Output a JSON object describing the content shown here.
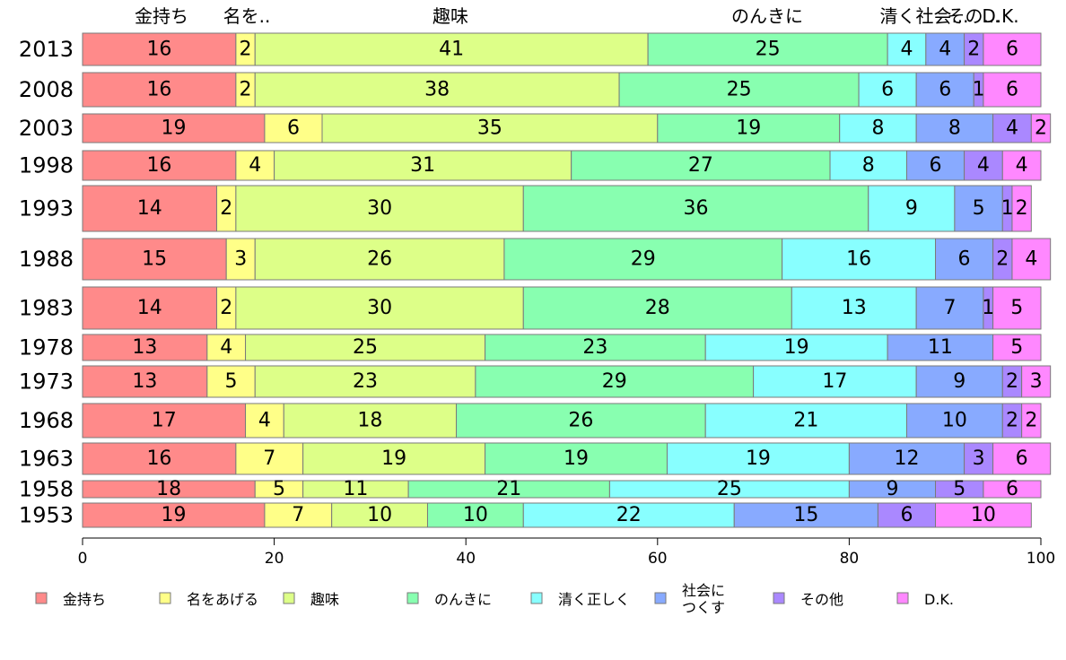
{
  "chart_data": {
    "type": "bar",
    "orientation": "horizontal",
    "stacked": true,
    "categories": [
      "2013",
      "2008",
      "2003",
      "1998",
      "1993",
      "1988",
      "1983",
      "1978",
      "1973",
      "1968",
      "1963",
      "1958",
      "1953"
    ],
    "series": [
      {
        "name": "金持ち",
        "color": "#ff8a8a",
        "values": [
          16,
          16,
          19,
          16,
          14,
          15,
          14,
          13,
          13,
          17,
          16,
          18,
          19
        ]
      },
      {
        "name": "名をあげる",
        "color": "#ffff88",
        "values": [
          2,
          2,
          6,
          4,
          2,
          3,
          2,
          4,
          5,
          4,
          7,
          5,
          7
        ]
      },
      {
        "name": "趣味",
        "color": "#ddff88",
        "values": [
          41,
          38,
          35,
          31,
          30,
          26,
          30,
          25,
          23,
          18,
          19,
          11,
          10
        ]
      },
      {
        "name": "のんきに",
        "color": "#88ffb0",
        "values": [
          25,
          25,
          19,
          27,
          36,
          29,
          28,
          23,
          29,
          26,
          19,
          21,
          10
        ]
      },
      {
        "name": "清く正しく",
        "color": "#88ffff",
        "values": [
          4,
          6,
          8,
          8,
          9,
          16,
          13,
          19,
          17,
          21,
          19,
          25,
          22
        ]
      },
      {
        "name": "社会に\nつくす",
        "color": "#88aaff",
        "values": [
          4,
          6,
          8,
          6,
          5,
          6,
          7,
          11,
          9,
          10,
          12,
          9,
          15
        ]
      },
      {
        "name": "その他",
        "color": "#aa88ff",
        "values": [
          2,
          1,
          4,
          4,
          1,
          2,
          1,
          0,
          2,
          2,
          3,
          5,
          6
        ]
      },
      {
        "name": "D.K.",
        "color": "#ff88ff",
        "values": [
          6,
          6,
          2,
          4,
          2,
          4,
          5,
          5,
          3,
          2,
          6,
          6,
          10
        ]
      }
    ],
    "top_labels": [
      "金持ち",
      "名を..",
      "趣味",
      "のんきに",
      "清く社会...",
      "その...",
      "D.K."
    ],
    "xlim": [
      0,
      100
    ],
    "xticks": [
      "0",
      "20",
      "40",
      "60",
      "80",
      "100"
    ],
    "grid": false,
    "legend_position": "bottom"
  }
}
